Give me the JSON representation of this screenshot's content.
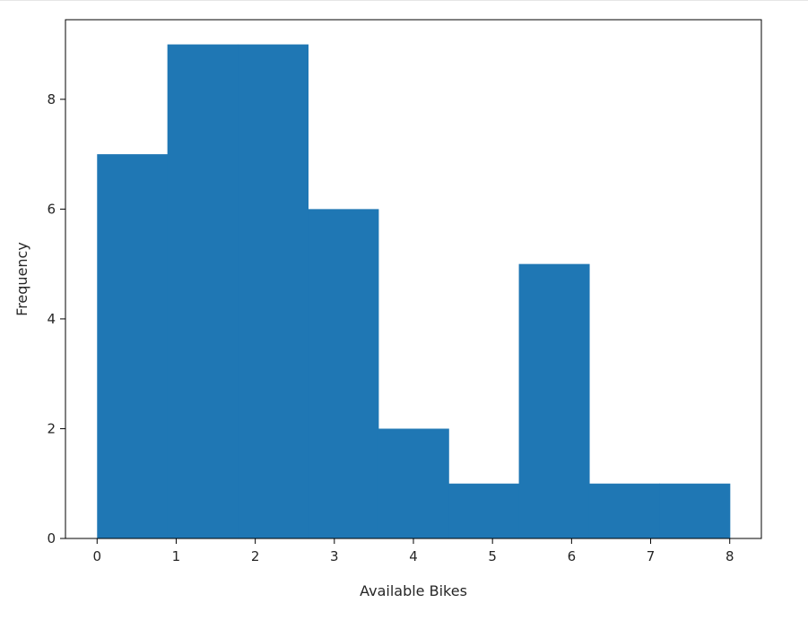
{
  "chart_data": {
    "type": "histogram",
    "title": "",
    "xlabel": "Available Bikes",
    "ylabel": "Frequency",
    "xlim": [
      -0.4,
      8.4
    ],
    "ylim": [
      0,
      9.45
    ],
    "xticks": [
      0,
      1,
      2,
      3,
      4,
      5,
      6,
      7,
      8
    ],
    "yticks": [
      0,
      2,
      4,
      6,
      8
    ],
    "bins": [
      0,
      0.888889,
      1.777778,
      2.666667,
      3.555556,
      4.444444,
      5.333333,
      6.222222,
      7.111111,
      8.0
    ],
    "values": [
      7,
      9,
      9,
      6,
      2,
      1,
      5,
      1,
      1
    ],
    "color": "#1f77b4",
    "grid": false,
    "legend": false
  }
}
